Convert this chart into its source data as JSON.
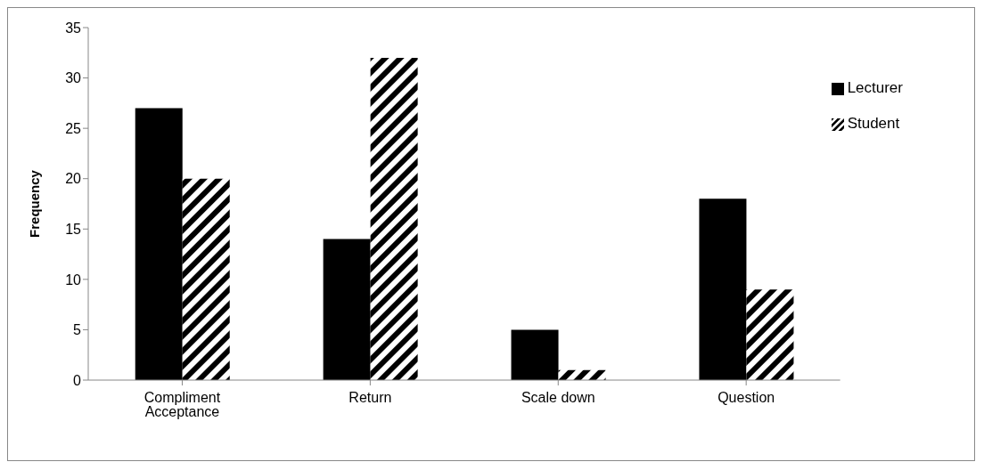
{
  "chart_data": {
    "type": "bar",
    "ylabel": "Frequency",
    "categories": [
      "Compliment Acceptance",
      "Return",
      "Scale down",
      "Question"
    ],
    "series": [
      {
        "name": "Lecturer",
        "color": "#000000",
        "values": [
          27,
          14,
          5,
          18
        ]
      },
      {
        "name": "Student",
        "color": "#000000",
        "values": [
          20,
          32,
          1,
          9
        ]
      }
    ],
    "ylim": [
      0,
      35
    ],
    "yticks": [
      0,
      5,
      10,
      15,
      20,
      25,
      30,
      35
    ],
    "grid": false,
    "legend": "top right"
  }
}
